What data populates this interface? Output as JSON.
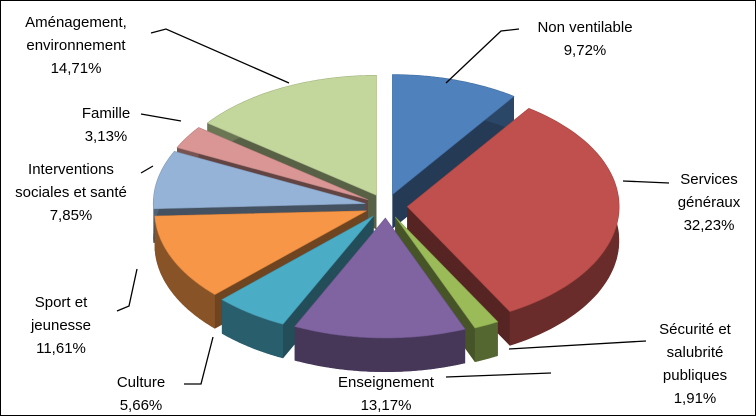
{
  "chart_data": {
    "type": "pie3d",
    "categories": [
      "Non ventilable",
      "Services généraux",
      "Sécurité et salubrité publiques",
      "Enseignement",
      "Culture",
      "Sport et jeunesse",
      "Interventions sociales et santé",
      "Famille",
      "Aménagement, environnement"
    ],
    "values": [
      9.72,
      32.23,
      1.91,
      13.17,
      5.66,
      11.61,
      7.85,
      3.13,
      14.71
    ],
    "value_labels": [
      "9,72%",
      "32,23%",
      "1,91%",
      "13,17%",
      "5,66%",
      "11,61%",
      "7,85%",
      "3,13%",
      "14,71%"
    ],
    "colors": [
      "#4f81bd",
      "#c0504d",
      "#9bbb59",
      "#8064a2",
      "#4bacc6",
      "#f79646",
      "#95b3d7",
      "#d99694",
      "#c3d69b"
    ]
  }
}
